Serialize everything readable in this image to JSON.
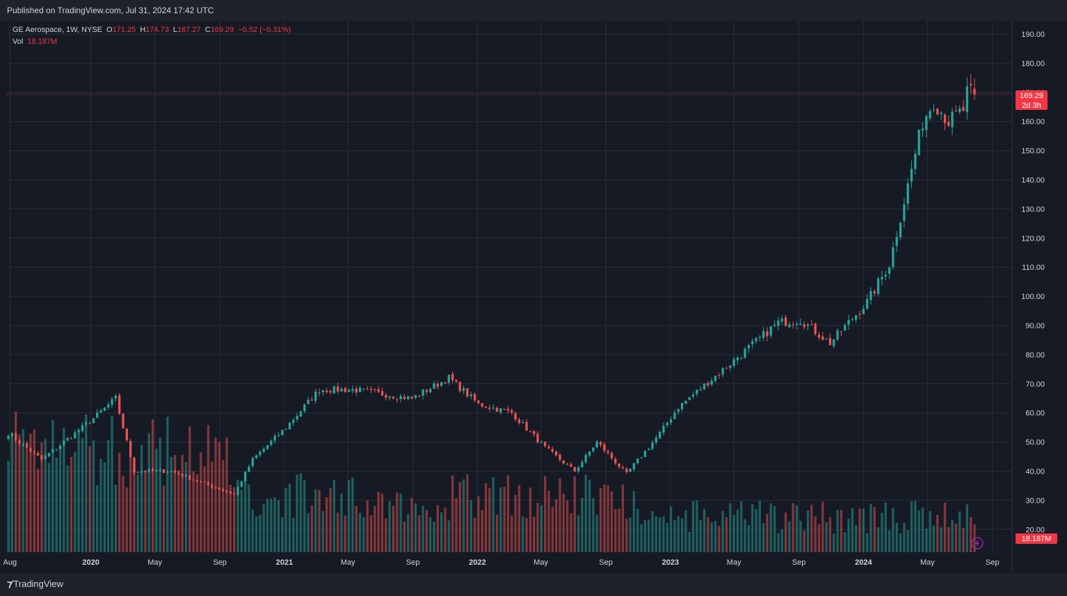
{
  "header": {
    "published": "Published on TradingView.com, Jul 31, 2024 17:42 UTC"
  },
  "legend": {
    "symbol": "GE Aerospace, 1W, NYSE",
    "o_label": "O",
    "o_value": "171.25",
    "h_label": "H",
    "h_value": "174.73",
    "l_label": "L",
    "l_value": "167.27",
    "c_label": "C",
    "c_value": "169.29",
    "change": "−0.52 (−0.31%)",
    "vol_label": "Vol",
    "vol_value": "18.187M"
  },
  "badges": {
    "price": "169.29",
    "countdown": "2d 3h",
    "volume": "18.187M"
  },
  "footer": {
    "brand": "TradingView"
  },
  "icons": [
    "tradingview-logo-icon",
    "lightning-icon"
  ],
  "colors": {
    "up": "#26a69a",
    "down": "#ef5350",
    "background": "#161a25",
    "grid": "#2a2e39",
    "text": "#d1d4dc",
    "badge": "#f23645"
  },
  "chart_data": {
    "type": "candlestick",
    "timeframe": "1W",
    "price_axis": {
      "min": 15,
      "max": 195,
      "ticks": [
        "190.00",
        "180.00",
        "170.00",
        "160.00",
        "150.00",
        "140.00",
        "130.00",
        "120.00",
        "110.00",
        "100.00",
        "90.00",
        "80.00",
        "70.00",
        "60.00",
        "50.00",
        "40.00",
        "30.00",
        "20.00"
      ],
      "scale": "linear"
    },
    "time_axis": {
      "ticks": [
        "Aug",
        "2020",
        "May",
        "Sep",
        "2021",
        "May",
        "Sep",
        "2022",
        "May",
        "Sep",
        "2023",
        "May",
        "Sep",
        "2024",
        "May",
        "Sep"
      ]
    },
    "last_price": 169.29,
    "grid": true,
    "ohlc_start": "2019-07-29",
    "ohlc_interval_days": 7,
    "ohlc_count": 262,
    "close_anchors": [
      [
        "2019-07-29",
        53
      ],
      [
        "2019-09-30",
        44
      ],
      [
        "2019-12-30",
        57
      ],
      [
        "2020-02-17",
        65
      ],
      [
        "2020-03-23",
        40
      ],
      [
        "2020-06-01",
        40
      ],
      [
        "2020-09-28",
        32
      ],
      [
        "2020-11-02",
        44
      ],
      [
        "2021-01-04",
        55
      ],
      [
        "2021-03-08",
        68
      ],
      [
        "2021-05-10",
        68
      ],
      [
        "2021-08-30",
        65
      ],
      [
        "2021-11-08",
        72
      ],
      [
        "2022-01-03",
        63
      ],
      [
        "2022-03-07",
        60
      ],
      [
        "2022-05-09",
        48
      ],
      [
        "2022-07-04",
        40
      ],
      [
        "2022-08-15",
        50
      ],
      [
        "2022-10-10",
        39
      ],
      [
        "2022-12-12",
        53
      ],
      [
        "2023-01-16",
        62
      ],
      [
        "2023-05-01",
        78
      ],
      [
        "2023-07-24",
        91
      ],
      [
        "2023-09-04",
        92
      ],
      [
        "2023-10-30",
        84
      ],
      [
        "2024-01-08",
        98
      ],
      [
        "2024-02-19",
        111
      ],
      [
        "2024-03-25",
        138
      ],
      [
        "2024-04-22",
        160
      ],
      [
        "2024-05-13",
        167
      ],
      [
        "2024-06-10",
        160
      ],
      [
        "2024-07-08",
        164
      ],
      [
        "2024-07-15",
        170
      ],
      [
        "2024-07-29",
        169.29
      ]
    ],
    "last_candle": {
      "date": "2024-07-29",
      "open": 171.25,
      "high": 174.73,
      "low": 167.27,
      "close": 169.29,
      "volume": "18.187M"
    },
    "prior_candle_volume": "23M"
  }
}
